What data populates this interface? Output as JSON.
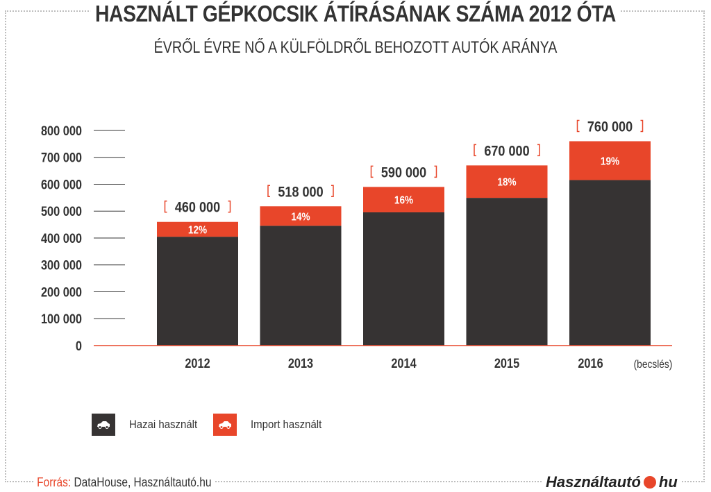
{
  "colors": {
    "domestic": "#363333",
    "import": "#e8462a",
    "text": "#333333",
    "axis": "#e8462a",
    "bracket": "#e8462a"
  },
  "chart_data": {
    "type": "bar",
    "stacked": true,
    "title": "HASZNÁLT GÉPKOCSIK ÁTÍRÁSÁNAK SZÁMA 2012 ÓTA",
    "subtitle": "ÉVRŐL ÉVRE NŐ A KÜLFÖLDRŐL BEHOZOTT AUTÓK ARÁNYA",
    "categories": [
      "2012",
      "2013",
      "2014",
      "2015",
      "2016"
    ],
    "category_notes": [
      "",
      "",
      "",
      "",
      "(becslés)"
    ],
    "totals": [
      460000,
      518000,
      590000,
      670000,
      760000
    ],
    "total_labels": [
      "460 000",
      "518 000",
      "590 000",
      "670 000",
      "760 000"
    ],
    "import_share_labels": [
      "12%",
      "14%",
      "16%",
      "18%",
      "19%"
    ],
    "series": [
      {
        "name": "Hazai használt",
        "values": [
          404800,
          445480,
          495600,
          549400,
          615600
        ]
      },
      {
        "name": "Import használt",
        "values": [
          55200,
          72520,
          94400,
          120600,
          144400
        ]
      }
    ],
    "yticks": [
      0,
      100000,
      200000,
      300000,
      400000,
      500000,
      600000,
      700000,
      800000
    ],
    "ytick_labels": [
      "0",
      "100 000",
      "200 000",
      "300 000",
      "400 000",
      "500 000",
      "600 000",
      "700 000",
      "800 000"
    ],
    "ylim": [
      0,
      800000
    ],
    "legend_position": "bottom-left"
  },
  "legend": [
    {
      "label": "Hazai használt",
      "icon": "car-icon"
    },
    {
      "label": "Import használt",
      "icon": "car-icon"
    }
  ],
  "footer": {
    "source_label": "Forrás:",
    "source_text": "DataHouse, Használtautó.hu",
    "brand_left": "Használtautó",
    "brand_right": "hu"
  }
}
